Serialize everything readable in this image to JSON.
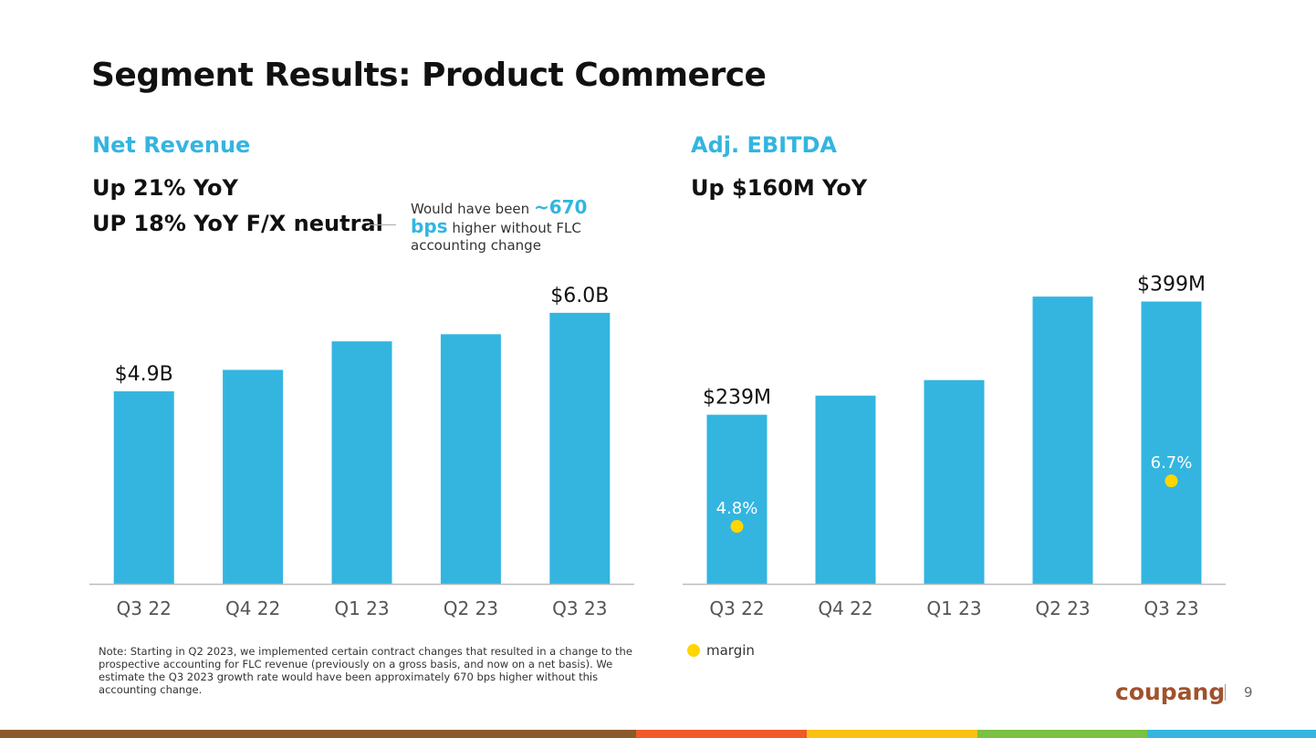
{
  "title": "Segment Results: Product Commerce",
  "annotation": {
    "prefix": "Would have been",
    "highlight": "~670 bps",
    "suffix": "higher without FLC accounting change"
  },
  "note": "Note: Starting in Q2 2023, we implemented certain contract changes that resulted in a change to the prospective accounting for FLC revenue (previously on a gross basis, and now on a net basis). We estimate the Q3 2023 growth rate would have been approximately 670 bps higher without this accounting change.",
  "logo": "coupang",
  "page_number": "9",
  "chart_data": [
    {
      "type": "bar",
      "title": "Net Revenue",
      "subtitle": [
        "Up 21% YoY",
        "UP 18% YoY F/X neutral"
      ],
      "categories": [
        "Q3 22",
        "Q4 22",
        "Q1 23",
        "Q2 23",
        "Q3 23"
      ],
      "values": [
        4.9,
        5.2,
        5.6,
        5.7,
        6.0
      ],
      "value_labels": [
        "$4.9B",
        null,
        null,
        null,
        "$6.0B"
      ],
      "color": "#33b5e0",
      "ylim": [
        2.2,
        6.6
      ]
    },
    {
      "type": "bar",
      "title": "Adj. EBITDA",
      "subtitle": [
        "Up $160M YoY"
      ],
      "categories": [
        "Q3 22",
        "Q4 22",
        "Q1 23",
        "Q2 23",
        "Q3 23"
      ],
      "values": [
        239,
        266,
        288,
        406,
        399
      ],
      "value_labels": [
        "$239M",
        null,
        null,
        null,
        "$399M"
      ],
      "color": "#33b5e0",
      "ylim": [
        0,
        450
      ],
      "series": [
        {
          "name": "margin",
          "color": "#ffd600",
          "axis": "y2",
          "values": [
            4.8,
            null,
            null,
            null,
            6.7
          ],
          "value_labels": [
            "4.8%",
            null,
            null,
            null,
            "6.7%"
          ]
        }
      ],
      "y2lim": [
        2.4,
        15.7
      ],
      "legend": "bottom-left"
    }
  ]
}
